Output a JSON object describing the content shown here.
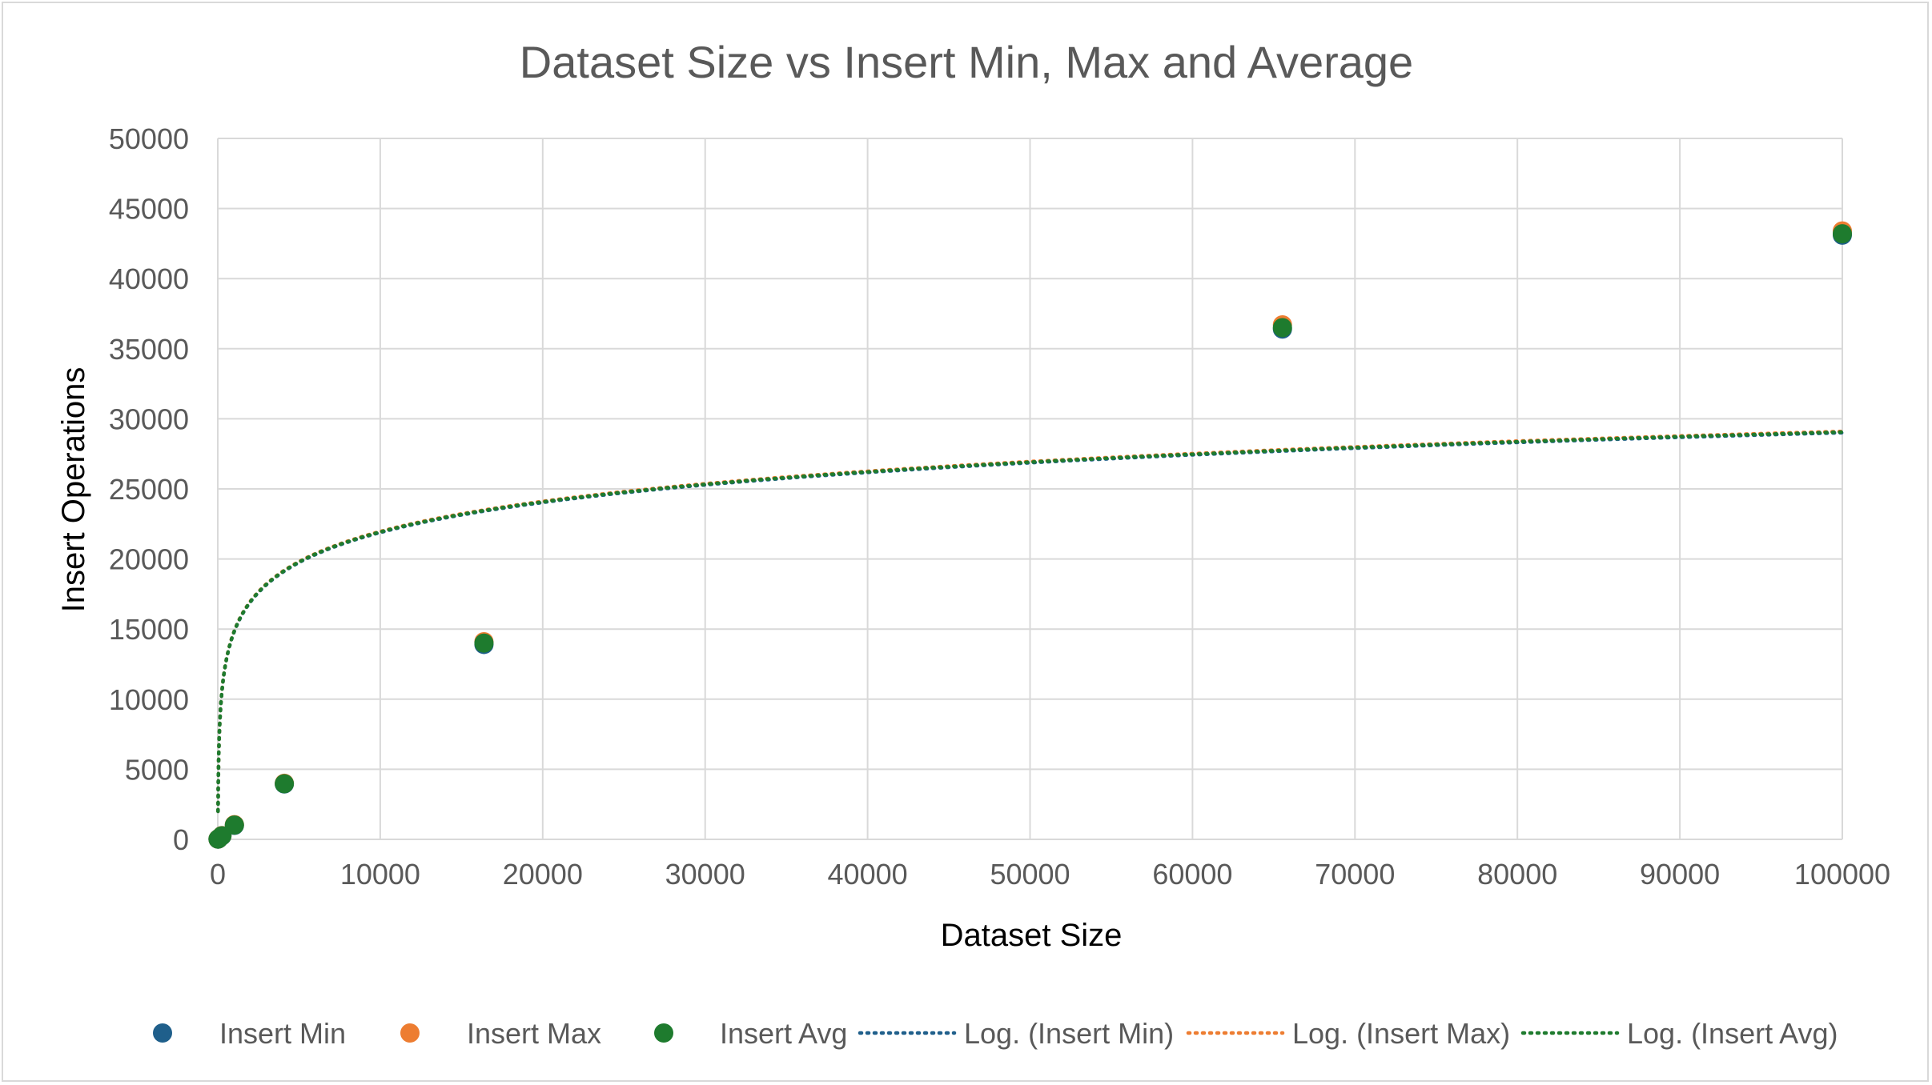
{
  "chart_data": {
    "type": "scatter",
    "title": "Dataset Size vs Insert Min, Max and Average",
    "xlabel": "Dataset Size",
    "ylabel": "Insert Operations",
    "xlim": [
      0,
      100000
    ],
    "ylim": [
      0,
      50000
    ],
    "x_ticks": [
      "0",
      "10000",
      "20000",
      "30000",
      "40000",
      "50000",
      "60000",
      "70000",
      "80000",
      "90000",
      "100000"
    ],
    "y_ticks": [
      "0",
      "5000",
      "10000",
      "15000",
      "20000",
      "25000",
      "30000",
      "35000",
      "40000",
      "45000",
      "50000"
    ],
    "grid": true,
    "legend_position": "bottom",
    "series": [
      {
        "name": "Insert Min",
        "color": "#1f5f8b",
        "x": [
          16,
          64,
          256,
          1024,
          4096,
          16384,
          65536,
          100000
        ],
        "y": [
          15,
          60,
          250,
          1000,
          3950,
          13900,
          36400,
          43100
        ]
      },
      {
        "name": "Insert Max",
        "color": "#ed7d31",
        "x": [
          16,
          64,
          256,
          1024,
          4096,
          16384,
          65536,
          100000
        ],
        "y": [
          20,
          70,
          270,
          1050,
          4000,
          14100,
          36700,
          43400
        ]
      },
      {
        "name": "Insert Avg",
        "color": "#1e7b2e",
        "x": [
          16,
          64,
          256,
          1024,
          4096,
          16384,
          65536,
          100000
        ],
        "y": [
          17,
          65,
          260,
          1020,
          3970,
          14000,
          36500,
          43200
        ]
      }
    ],
    "trendlines": [
      {
        "name": "Log. (Insert Min)",
        "type": "logarithmic",
        "color": "#1f5f8b",
        "a": 3090.0,
        "b": -6570
      },
      {
        "name": "Log. (Insert Max)",
        "type": "logarithmic",
        "color": "#ed7d31",
        "a": 3100.0,
        "b": -6590
      },
      {
        "name": "Log. (Insert Avg)",
        "type": "logarithmic",
        "color": "#1e7b2e",
        "a": 3095.0,
        "b": -6580
      }
    ]
  }
}
